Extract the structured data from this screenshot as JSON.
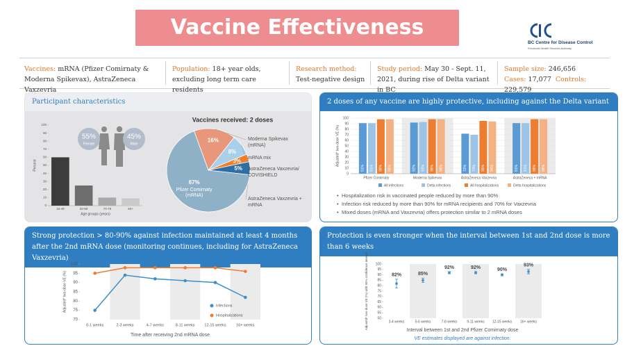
{
  "header": {
    "title": "Vaccine Effectiveness",
    "org": "BC Centre for Disease Control",
    "org_sub": "Provincial Health Services Authority"
  },
  "study": [
    {
      "label": "Vaccines:",
      "text": "mRNA (Pfizer Comirnaty & Moderna Spikevax), AstraZeneca Vaxzevria"
    },
    {
      "label": "Population:",
      "text": "18+ year olds, excluding long term care residents"
    },
    {
      "label": "Research method:",
      "text": "Test-negative design"
    },
    {
      "label": "Study period:",
      "text": "May 30 - Sept. 11, 2021, during rise of Delta variant in BC"
    },
    {
      "label": "Sample size:",
      "text": "246,656"
    }
  ],
  "study_extra": [
    {
      "label": "Cases:",
      "text": "17,077"
    },
    {
      "label": "Controls:",
      "text": "229,579"
    }
  ],
  "panels": [
    {
      "title": "Participant characteristics"
    },
    {
      "title": "2 doses of any vaccine are highly protective, including against the Delta variant",
      "notes": [
        "Hospitalization risk in vaccinated people reduced by more than 90%",
        "Infection risk reduced by more than 90% for mRNA recipients and 70% for Vaxzevria",
        "Mixed doses (mRNA and Vaxzevria) offers protection similar to 2 mRNA doses"
      ]
    },
    {
      "title": "Strong protection > 80-90% against infection maintained at least 4 months after the 2nd mRNA dose (monitoring continues, including for AstraZeneca Vaxzevria)"
    },
    {
      "title": "Protection is even stronger when the interval between 1st and 2nd dose is more than 6 weeks"
    }
  ],
  "chart_data": [
    {
      "type": "bar",
      "xlabel": "Age groups (years)",
      "ylabel": "Percent",
      "categories": [
        "18-49",
        "50-69",
        "70-79",
        "80+"
      ],
      "values": [
        60,
        25,
        10,
        9
      ],
      "colors": [
        "#3c3c3c",
        "#6e6e6e",
        "#a9a9a9",
        "#c9c9c9"
      ],
      "ylim": [
        0,
        100
      ],
      "yticks": [
        0,
        10,
        20,
        30,
        40,
        50,
        60,
        70,
        80,
        90,
        100
      ],
      "inset": {
        "categories": [
          "Female",
          "Male"
        ],
        "values": [
          55,
          45
        ],
        "value_labels": [
          "55%",
          "45%"
        ],
        "color": "#b3bccb"
      }
    },
    {
      "type": "pie",
      "title": "Vaccines received: 2 doses",
      "categories": [
        "Moderna Spikevax (mRNA)",
        "mRNA mix",
        "AstraZeneca Vaxzevria/ COVISHIELD",
        "AstraZeneca Vaxzevria + mRNA",
        "Pfizer Comirnaty (mRNA)"
      ],
      "values": [
        16,
        8,
        3,
        5,
        67
      ],
      "value_labels": [
        "16%",
        "8%",
        "3%",
        "5%",
        "67%"
      ],
      "colors": [
        "#e9977b",
        "#a8d0ea",
        "#ef7f2c",
        "#2f6ea4",
        "#8fb1c8"
      ]
    },
    {
      "type": "bar",
      "ylabel": "Adjusted* two-dose VE (%)",
      "categories": [
        "Pfizer Comirnaty",
        "Moderna Spikevax",
        "AstraZeneca Vaxzevria",
        "AstraZeneca + mRNA"
      ],
      "series": [
        {
          "name": "All infections",
          "color": "#5b9bd5",
          "values": [
            91,
            92,
            72,
            91
          ],
          "value_labels": [
            "91%",
            "92%",
            "72%",
            "91%"
          ]
        },
        {
          "name": "Delta infections",
          "color": "#9dc3e6",
          "values": [
            91,
            93,
            70,
            91
          ],
          "value_labels": [
            "91%",
            "93%",
            "70%",
            "91%"
          ]
        },
        {
          "name": "All hospitalizations",
          "color": "#ed7d31",
          "values": [
            98,
            98,
            95,
            98
          ],
          "value_labels": [
            "98%",
            "98%",
            "95%",
            "98%"
          ]
        },
        {
          "name": "Delta hospitalizations",
          "color": "#f4b183",
          "values": [
            98,
            98,
            94,
            98
          ],
          "value_labels": [
            "98%",
            "98%",
            "94%",
            "98%"
          ]
        }
      ],
      "ylim": [
        0,
        100
      ],
      "yticks": [
        0,
        10,
        20,
        30,
        40,
        50,
        60,
        70,
        80,
        90,
        100
      ]
    },
    {
      "type": "line",
      "xlabel": "Time after receiving 2nd mRNA dose",
      "ylabel": "Adjusted* two-dose VE (%)",
      "categories": [
        "0-1 weeks",
        "2-3 weeks",
        "4-7 weeks",
        "8-11 weeks",
        "12-15 weeks",
        "16+ weeks"
      ],
      "series": [
        {
          "name": "Infections",
          "color": "#3d8fcc",
          "values": [
            75,
            94,
            92,
            91,
            90,
            82
          ]
        },
        {
          "name": "Hospitalizations",
          "color": "#ed7d31",
          "values": [
            95,
            98,
            98,
            98,
            98,
            96
          ]
        }
      ],
      "ylim": [
        70,
        100
      ],
      "yticks": [
        70,
        75,
        80,
        85,
        90,
        95,
        100
      ]
    },
    {
      "type": "errorbar",
      "xlabel": "Interval between 1st and 2nd Pfizer Comirnaty dose",
      "ylabel": "Adjusted* two-dose VE (%) with 95% confidence interval",
      "categories": [
        "3-4 weeks",
        "5-6 weeks",
        "7-8 weeks",
        "9-11 weeks",
        "12-15 weeks",
        "16+ weeks"
      ],
      "values": [
        82,
        85,
        92,
        92,
        90,
        93
      ],
      "errors": [
        4,
        2,
        1,
        1,
        1,
        2
      ],
      "value_labels": [
        "82%",
        "85%",
        "92%",
        "92%",
        "90%",
        "93%"
      ],
      "color": "#3d8fcc",
      "ylim": [
        50,
        100
      ],
      "yticks": [
        50,
        55,
        60,
        65,
        70,
        75,
        80,
        85,
        90,
        95,
        100
      ],
      "note": "VE estimates displayed are against infection."
    }
  ]
}
